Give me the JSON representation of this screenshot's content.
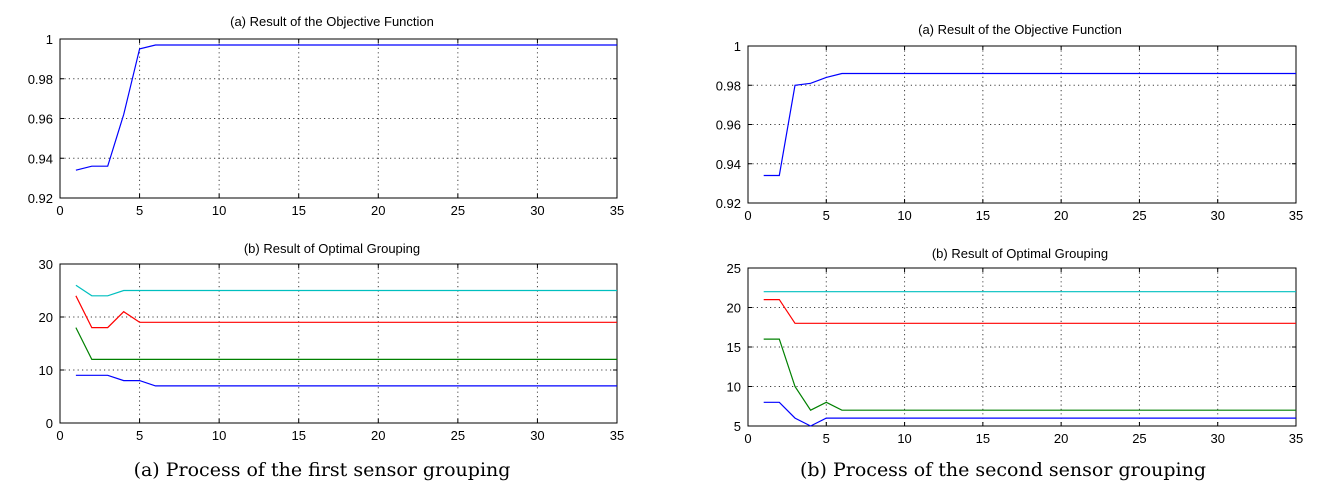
{
  "figures": [
    {
      "caption": "(a) Process of the first sensor grouping",
      "top": {
        "title": "(a) Result of the Objective Function",
        "xlim": [
          0,
          35
        ],
        "ylim": [
          0.92,
          1
        ],
        "xticks": [
          "0",
          "5",
          "10",
          "15",
          "20",
          "25",
          "30",
          "35"
        ],
        "yticks": [
          "0.92",
          "0.94",
          "0.96",
          "0.98",
          "1"
        ]
      },
      "bottom": {
        "title": "(b) Result of Optimal Grouping",
        "xlim": [
          0,
          35
        ],
        "ylim": [
          0,
          30
        ],
        "xticks": [
          "0",
          "5",
          "10",
          "15",
          "20",
          "25",
          "30",
          "35"
        ],
        "yticks": [
          "0",
          "10",
          "20",
          "30"
        ]
      }
    },
    {
      "caption": "(b) Process of the second sensor grouping",
      "top": {
        "title": "(a) Result of the Objective Function",
        "xlim": [
          0,
          35
        ],
        "ylim": [
          0.92,
          1
        ],
        "xticks": [
          "0",
          "5",
          "10",
          "15",
          "20",
          "25",
          "30",
          "35"
        ],
        "yticks": [
          "0.92",
          "0.94",
          "0.96",
          "0.98",
          "1"
        ]
      },
      "bottom": {
        "title": "(b) Result of Optimal Grouping",
        "xlim": [
          0,
          35
        ],
        "ylim": [
          5,
          25
        ],
        "xticks": [
          "0",
          "5",
          "10",
          "15",
          "20",
          "25",
          "30",
          "35"
        ],
        "yticks": [
          "5",
          "10",
          "15",
          "20",
          "25"
        ]
      }
    }
  ],
  "colors": {
    "blue": "#0000ff",
    "green": "#008000",
    "red": "#ff0000",
    "cyan": "#00bfbf"
  },
  "chart_data": [
    {
      "type": "line",
      "title": "(a) Result of the Objective Function",
      "x": [
        1,
        2,
        3,
        4,
        5,
        6,
        35
      ],
      "series": [
        {
          "color": "#0000ff",
          "values": [
            0.934,
            0.936,
            0.936,
            0.962,
            0.995,
            0.997,
            0.997
          ]
        }
      ],
      "xlim": [
        0,
        35
      ],
      "ylim": [
        0.92,
        1
      ],
      "grid": true
    },
    {
      "type": "line",
      "title": "(b) Result of Optimal Grouping",
      "x": [
        1,
        2,
        3,
        4,
        5,
        6,
        35
      ],
      "series": [
        {
          "color": "#00bfbf",
          "values": [
            26,
            24,
            24,
            25,
            25,
            25,
            25
          ]
        },
        {
          "color": "#ff0000",
          "values": [
            24,
            18,
            18,
            21,
            19,
            19,
            19
          ]
        },
        {
          "color": "#008000",
          "values": [
            18,
            12,
            12,
            12,
            12,
            12,
            12
          ]
        },
        {
          "color": "#0000ff",
          "values": [
            9,
            9,
            9,
            8,
            8,
            7,
            7
          ]
        }
      ],
      "xlim": [
        0,
        35
      ],
      "ylim": [
        0,
        30
      ],
      "grid": true
    },
    {
      "type": "line",
      "title": "(a) Result of the Objective Function",
      "x": [
        1,
        2,
        3,
        4,
        5,
        6,
        35
      ],
      "series": [
        {
          "color": "#0000ff",
          "values": [
            0.934,
            0.934,
            0.98,
            0.981,
            0.984,
            0.986,
            0.986
          ]
        }
      ],
      "xlim": [
        0,
        35
      ],
      "ylim": [
        0.92,
        1
      ],
      "grid": true
    },
    {
      "type": "line",
      "title": "(b) Result of Optimal Grouping",
      "x": [
        1,
        2,
        3,
        4,
        5,
        6,
        35
      ],
      "series": [
        {
          "color": "#00bfbf",
          "values": [
            22,
            22,
            22,
            22,
            22,
            22,
            22
          ]
        },
        {
          "color": "#ff0000",
          "values": [
            21,
            21,
            18,
            18,
            18,
            18,
            18
          ]
        },
        {
          "color": "#008000",
          "values": [
            16,
            16,
            10,
            7,
            8,
            7,
            7
          ]
        },
        {
          "color": "#0000ff",
          "values": [
            8,
            8,
            6,
            5,
            6,
            6,
            6
          ]
        }
      ],
      "xlim": [
        0,
        35
      ],
      "ylim": [
        5,
        25
      ],
      "grid": true
    }
  ]
}
